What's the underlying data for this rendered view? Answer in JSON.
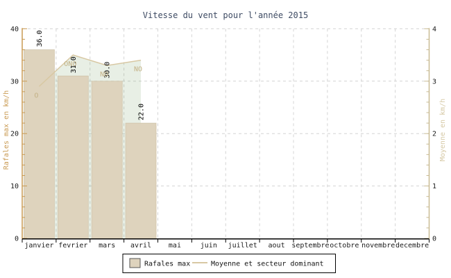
{
  "chart_data": {
    "type": "bar",
    "title": "Vitesse du vent pour l'année 2015",
    "categories": [
      "janvier",
      "fevrier",
      "mars",
      "avril",
      "mai",
      "juin",
      "juillet",
      "aout",
      "septembre",
      "octobre",
      "novembre",
      "decembre"
    ],
    "series": [
      {
        "name": "Rafales max",
        "type": "bar",
        "axis": "left",
        "values": [
          36.0,
          31.0,
          30.0,
          22.0,
          null,
          null,
          null,
          null,
          null,
          null,
          null,
          null
        ],
        "value_labels": [
          "36.0",
          "31.0",
          "30.0",
          "22.0",
          null,
          null,
          null,
          null,
          null,
          null,
          null,
          null
        ]
      },
      {
        "name": "Moyenne et secteur dominant",
        "type": "line",
        "axis": "right",
        "values": [
          2.9,
          3.5,
          3.3,
          3.4,
          null,
          null,
          null,
          null,
          null,
          null,
          null,
          null
        ],
        "point_labels": [
          "O",
          "ONO",
          "NO",
          "NO",
          null,
          null,
          null,
          null,
          null,
          null,
          null,
          null
        ]
      }
    ],
    "left_axis": {
      "title": "Rafales max en km/h",
      "min": 0,
      "max": 40,
      "major_ticks": [
        0,
        10,
        20,
        30,
        40
      ],
      "minor_step": 2
    },
    "right_axis": {
      "title": "Moyenne en km/h",
      "min": 0,
      "max": 4,
      "major_ticks": [
        0,
        1,
        2,
        3,
        4
      ],
      "minor_step": 0.2
    },
    "legend": {
      "items": [
        {
          "label": "Rafales max",
          "marker": "box"
        },
        {
          "label": "Moyenne et secteur dominant",
          "marker": "line"
        }
      ],
      "position": "bottom"
    },
    "grid": true,
    "colors": {
      "bar_fill": "#ded3bd",
      "bar_stroke": "#cfc3a9",
      "line": "#d8c8a3",
      "area_fill": "rgba(104,150,78,0.15)",
      "sector_label": "#c3b185",
      "title": "#3e4b63",
      "left_axis": "#c99a52",
      "right_axis": "#c9bb93",
      "right_axis_title": "#d6c9a5",
      "grid": "#d4d4d4",
      "tick_text": "#1a1a1a",
      "x_axis": "#000000",
      "value_label": "#000000"
    }
  }
}
